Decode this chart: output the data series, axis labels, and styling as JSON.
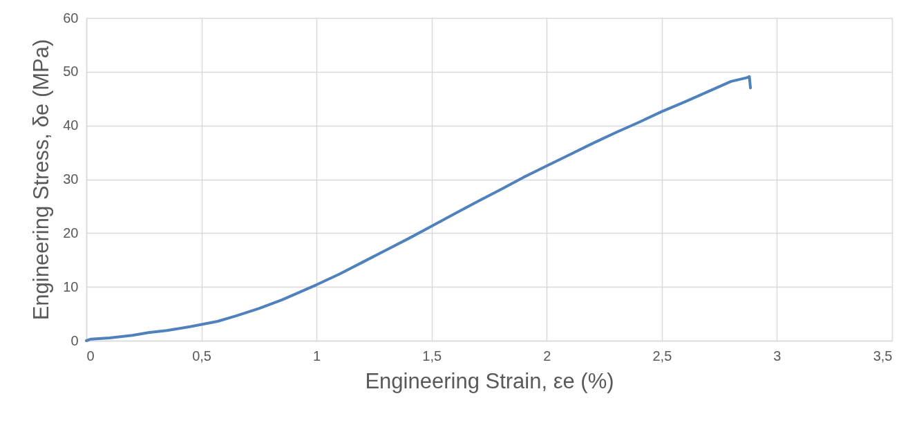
{
  "chart_data": {
    "type": "line",
    "xlabel": "Engineering Strain, εe (%)",
    "ylabel": "Engineering Stress, δe (MPa)",
    "x": [
      0,
      0.02,
      0.1,
      0.2,
      0.27,
      0.35,
      0.45,
      0.57,
      0.65,
      0.75,
      0.85,
      1.0,
      1.1,
      1.2,
      1.3,
      1.4,
      1.5,
      1.6,
      1.7,
      1.8,
      1.9,
      2.0,
      2.1,
      2.2,
      2.3,
      2.4,
      2.5,
      2.6,
      2.7,
      2.8,
      2.87,
      2.88,
      2.885
    ],
    "series": [
      {
        "color": "#4f81bd",
        "values": [
          0,
          0.3,
          0.5,
          1.0,
          1.5,
          1.9,
          2.6,
          3.6,
          4.6,
          6.0,
          7.6,
          10.4,
          12.4,
          14.6,
          16.8,
          19.0,
          21.3,
          23.6,
          25.9,
          28.1,
          30.4,
          32.5,
          34.6,
          36.7,
          38.7,
          40.6,
          42.6,
          44.4,
          46.3,
          48.2,
          48.9,
          49.1,
          47.0
        ]
      }
    ],
    "xlim": [
      0,
      3.5
    ],
    "xticks": [
      0,
      {
        "value": 0.5,
        "label": "0,5"
      },
      1,
      {
        "value": 1.5,
        "label": "1,5"
      },
      2,
      {
        "value": 2.5,
        "label": "2,5"
      },
      3,
      {
        "value": 3.5,
        "label": "3,5"
      }
    ],
    "ylim": [
      0,
      60
    ],
    "yticks": [
      0,
      10,
      20,
      30,
      40,
      50,
      60
    ],
    "grid": true,
    "marker": "none",
    "line_style": "solid"
  }
}
